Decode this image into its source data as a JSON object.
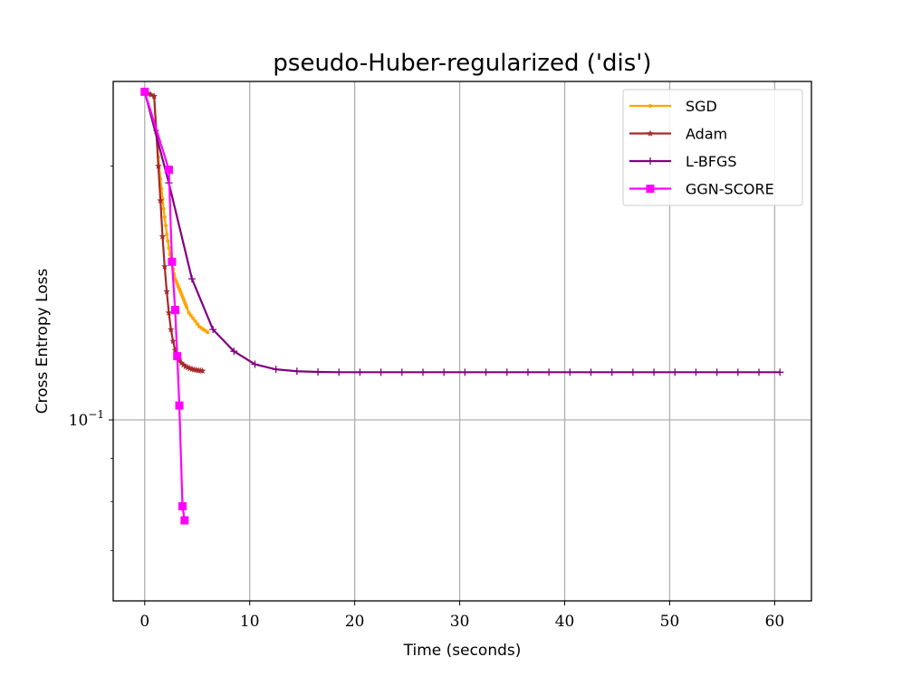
{
  "chart_data": {
    "type": "line",
    "title": "pseudo-Huber-regularized ('dis')",
    "xlabel": "Time (seconds)",
    "ylabel": "Cross Entropy Loss",
    "yscale": "log",
    "xlim": [
      -3,
      63.5
    ],
    "ylim": [
      0.061,
      0.252
    ],
    "x_ticks": [
      0,
      10,
      20,
      30,
      40,
      50,
      60
    ],
    "x_tick_labels": [
      "0",
      "10",
      "20",
      "30",
      "40",
      "50",
      "60"
    ],
    "y_major_ticks": [
      0.1
    ],
    "y_major_tick_labels": [
      "10",
      "−1"
    ],
    "y_minor_ticks": [
      0.07,
      0.08,
      0.09,
      0.2
    ],
    "grid": true,
    "legend_position": "upper right",
    "series": [
      {
        "name": "SGD",
        "color": "#ffa500",
        "marker": "point",
        "x": [
          0,
          0.3,
          0.6,
          0.9,
          1.1,
          1.3,
          1.5,
          1.6,
          1.7,
          1.8,
          1.9,
          2.0,
          2.1,
          2.2,
          2.3,
          2.4,
          2.5,
          2.6,
          2.7,
          2.8,
          2.9,
          3.0,
          3.1,
          3.2,
          3.3,
          3.4,
          3.5,
          3.6,
          3.7,
          3.8,
          3.9,
          4.0,
          4.2,
          4.4,
          4.6,
          4.8,
          5.0,
          5.2,
          5.4,
          5.6,
          5.8,
          6.0
        ],
        "y": [
          0.245,
          0.244,
          0.243,
          0.242,
          0.22,
          0.205,
          0.193,
          0.188,
          0.183,
          0.178,
          0.174,
          0.17,
          0.166,
          0.163,
          0.16,
          0.157,
          0.155,
          0.153,
          0.151,
          0.149,
          0.147,
          0.146,
          0.145,
          0.144,
          0.143,
          0.142,
          0.141,
          0.14,
          0.139,
          0.138,
          0.137,
          0.136,
          0.134,
          0.133,
          0.132,
          0.131,
          0.13,
          0.129,
          0.1285,
          0.128,
          0.1275,
          0.127
        ]
      },
      {
        "name": "Adam",
        "color": "#a52a2a",
        "marker": "star",
        "x": [
          0,
          0.3,
          0.6,
          0.9,
          1.1,
          1.3,
          1.5,
          1.7,
          1.9,
          2.1,
          2.3,
          2.5,
          2.7,
          2.9,
          3.1,
          3.3,
          3.5,
          3.7,
          3.9,
          4.1,
          4.3,
          4.5,
          4.7,
          4.9,
          5.1,
          5.3,
          5.5
        ],
        "y": [
          0.245,
          0.244,
          0.243,
          0.242,
          0.22,
          0.2,
          0.182,
          0.165,
          0.152,
          0.142,
          0.134,
          0.128,
          0.124,
          0.121,
          0.119,
          0.1178,
          0.1168,
          0.1162,
          0.1157,
          0.1154,
          0.1151,
          0.1149,
          0.1147,
          0.1146,
          0.1145,
          0.1144,
          0.1143
        ]
      },
      {
        "name": "L-BFGS",
        "color": "#800080",
        "marker": "plus",
        "x": [
          0,
          2.3,
          4.5,
          6.5,
          8.5,
          10.5,
          12.5,
          14.5,
          16.5,
          18.5,
          20.5,
          22.5,
          24.5,
          26.5,
          28.5,
          30.5,
          32.5,
          34.5,
          36.5,
          38.5,
          40.5,
          42.5,
          44.5,
          46.5,
          48.5,
          50.5,
          52.5,
          54.5,
          56.5,
          58.5,
          60.5
        ],
        "y": [
          0.245,
          0.191,
          0.147,
          0.128,
          0.1206,
          0.1164,
          0.1148,
          0.1142,
          0.114,
          0.1139,
          0.1139,
          0.1139,
          0.1139,
          0.1139,
          0.1139,
          0.1139,
          0.1139,
          0.1139,
          0.1139,
          0.1139,
          0.1139,
          0.1139,
          0.1139,
          0.1139,
          0.1139,
          0.1139,
          0.1139,
          0.1139,
          0.1139,
          0.1139,
          0.1139
        ]
      },
      {
        "name": "GGN-SCORE",
        "color": "#ff00ff",
        "marker": "square",
        "x": [
          0,
          2.3,
          2.6,
          2.9,
          3.1,
          3.3,
          3.6,
          3.8
        ],
        "y": [
          0.245,
          0.198,
          0.154,
          0.135,
          0.119,
          0.104,
          0.079,
          0.076
        ]
      }
    ]
  }
}
